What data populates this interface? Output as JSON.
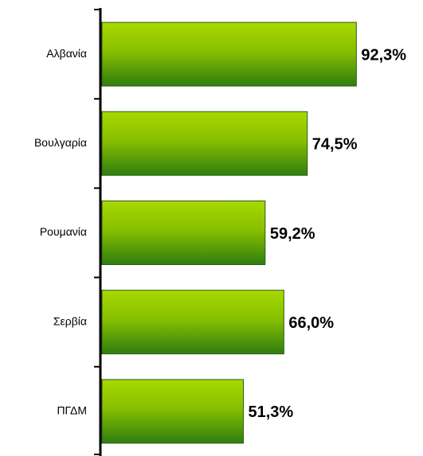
{
  "chart_data": {
    "type": "bar",
    "orientation": "horizontal",
    "categories": [
      "Αλβανία",
      "Βουλγαρία",
      "Ρουμανία",
      "Σερβία",
      "ΠΓΔΜ"
    ],
    "values": [
      92.3,
      74.5,
      59.2,
      66.0,
      51.3
    ],
    "value_labels": [
      "92,3%",
      "74,5%",
      "59,2%",
      "66,0%",
      "51,3%"
    ],
    "color": "#66aa00",
    "xlim": [
      0,
      100
    ]
  }
}
